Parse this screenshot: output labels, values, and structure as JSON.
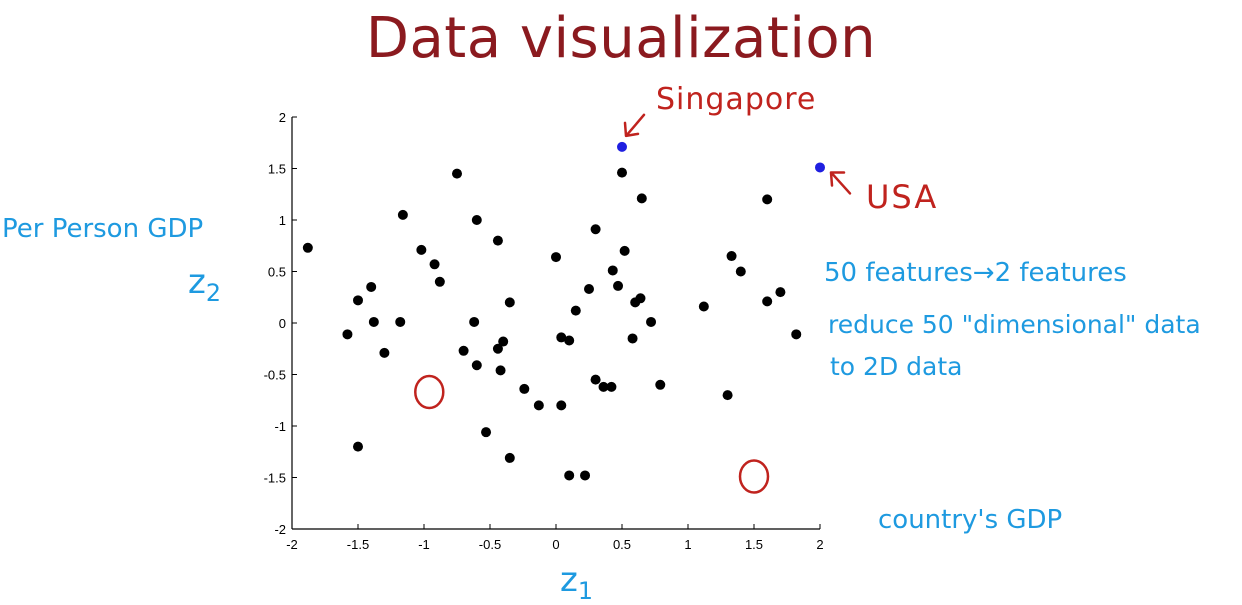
{
  "title": "Data visualization",
  "annotations": {
    "singapore": "Singapore",
    "usa": "USA",
    "per_person_gdp": "Per Person GDP",
    "z2_main": "z",
    "z2_sub": "2",
    "z1_main": "z",
    "z1_sub": "1",
    "features": "50 features",
    "features_arrow": "→",
    "features_to": "2 features",
    "reduce": "reduce 50 \"dimensional\" data",
    "to2d": "to 2D data",
    "country_gdp": "country's GDP"
  },
  "colors": {
    "title": "#8b1a1f",
    "annotation_blue": "#1e9ae0",
    "annotation_red": "#c0231e",
    "point": "#000000",
    "highlight_point": "#1f1fe0"
  },
  "chart_data": {
    "type": "scatter",
    "xlim": [
      -2,
      2
    ],
    "ylim": [
      -2,
      2
    ],
    "xticks": [
      "-2",
      "-1.5",
      "-1",
      "-0.5",
      "0",
      "0.5",
      "1",
      "1.5",
      "2"
    ],
    "yticks": [
      "-2",
      "-1.5",
      "-1",
      "-0.5",
      "0",
      "0.5",
      "1",
      "1.5",
      "2"
    ],
    "grid": false,
    "points": [
      [
        -1.88,
        0.73
      ],
      [
        -1.58,
        -0.11
      ],
      [
        -1.5,
        0.22
      ],
      [
        -1.5,
        -1.2
      ],
      [
        -1.4,
        0.35
      ],
      [
        -1.38,
        0.01
      ],
      [
        -1.3,
        -0.29
      ],
      [
        -1.18,
        0.01
      ],
      [
        -1.16,
        1.05
      ],
      [
        -1.02,
        0.71
      ],
      [
        -0.92,
        0.57
      ],
      [
        -0.88,
        0.4
      ],
      [
        -0.75,
        1.45
      ],
      [
        -0.7,
        -0.27
      ],
      [
        -0.62,
        0.01
      ],
      [
        -0.6,
        1.0
      ],
      [
        -0.6,
        -0.41
      ],
      [
        -0.53,
        -1.06
      ],
      [
        -0.44,
        0.8
      ],
      [
        -0.44,
        -0.25
      ],
      [
        -0.42,
        -0.46
      ],
      [
        -0.4,
        -0.18
      ],
      [
        -0.35,
        0.2
      ],
      [
        -0.35,
        -1.31
      ],
      [
        -0.24,
        -0.64
      ],
      [
        -0.13,
        -0.8
      ],
      [
        0.0,
        0.64
      ],
      [
        0.04,
        -0.14
      ],
      [
        0.04,
        -0.8
      ],
      [
        0.1,
        -0.17
      ],
      [
        0.1,
        -1.48
      ],
      [
        0.15,
        0.12
      ],
      [
        0.22,
        -1.48
      ],
      [
        0.25,
        0.33
      ],
      [
        0.3,
        0.91
      ],
      [
        0.3,
        -0.55
      ],
      [
        0.36,
        -0.62
      ],
      [
        0.42,
        -0.62
      ],
      [
        0.43,
        0.51
      ],
      [
        0.47,
        0.36
      ],
      [
        0.5,
        1.46
      ],
      [
        0.52,
        0.7
      ],
      [
        0.58,
        -0.15
      ],
      [
        0.6,
        0.2
      ],
      [
        0.64,
        0.24
      ],
      [
        0.65,
        1.21
      ],
      [
        0.72,
        0.01
      ],
      [
        0.79,
        -0.6
      ],
      [
        1.12,
        0.16
      ],
      [
        1.3,
        -0.7
      ],
      [
        1.33,
        0.65
      ],
      [
        1.4,
        0.5
      ],
      [
        1.6,
        0.21
      ],
      [
        1.6,
        1.2
      ],
      [
        1.7,
        0.3
      ],
      [
        1.82,
        -0.11
      ]
    ],
    "highlighted": [
      {
        "label": "Singapore",
        "x": 0.5,
        "y": 1.71
      },
      {
        "label": "USA",
        "x": 2.0,
        "y": 1.51
      }
    ],
    "circled": [
      {
        "x": -0.96,
        "y": -0.68
      },
      {
        "x": 1.5,
        "y": -1.5
      }
    ]
  }
}
